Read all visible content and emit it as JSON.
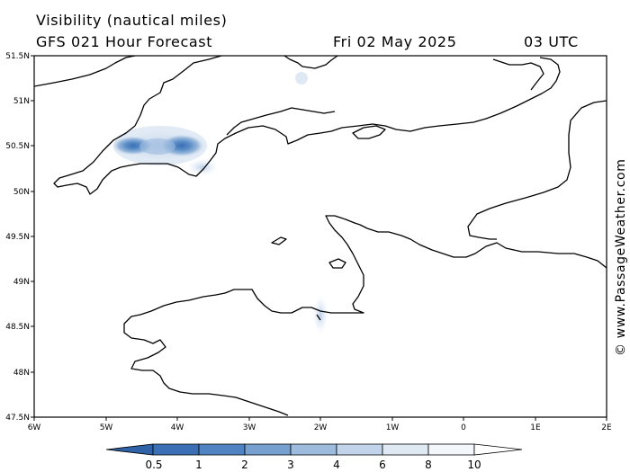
{
  "header": {
    "title": "Visibility (nautical miles)",
    "subtitle": "GFS 021 Hour Forecast",
    "date": "Fri 02 May 2025",
    "time": "03 UTC"
  },
  "axes": {
    "lat_labels": [
      "51.5N",
      "51N",
      "50.5N",
      "50N",
      "49.5N",
      "49N",
      "48.5N",
      "48N",
      "47.5N"
    ],
    "lon_labels": [
      "6W",
      "5W",
      "4W",
      "3W",
      "2W",
      "1W",
      "0",
      "1E",
      "2E"
    ],
    "lat_range": [
      47.5,
      51.5
    ],
    "lon_range": [
      -6,
      2
    ]
  },
  "colorbar": {
    "labels": [
      "0.5",
      "1",
      "2",
      "3",
      "4",
      "6",
      "8",
      "10"
    ],
    "colors": [
      "#3a6fb5",
      "#4f83c2",
      "#76a0cf",
      "#9dbbdd",
      "#c1d4ea",
      "#dfe9f4",
      "#f3f7fb",
      "#ffffff"
    ]
  },
  "watermark": "© www.PassageWeather.com",
  "reduced_visibility_areas": [
    {
      "lon": -4.62,
      "lat": 50.51,
      "value": 0.5
    },
    {
      "lon": -3.98,
      "lat": 50.51,
      "value": 0.5
    },
    {
      "lon": -2.05,
      "lat": 48.57,
      "value": 8
    }
  ]
}
